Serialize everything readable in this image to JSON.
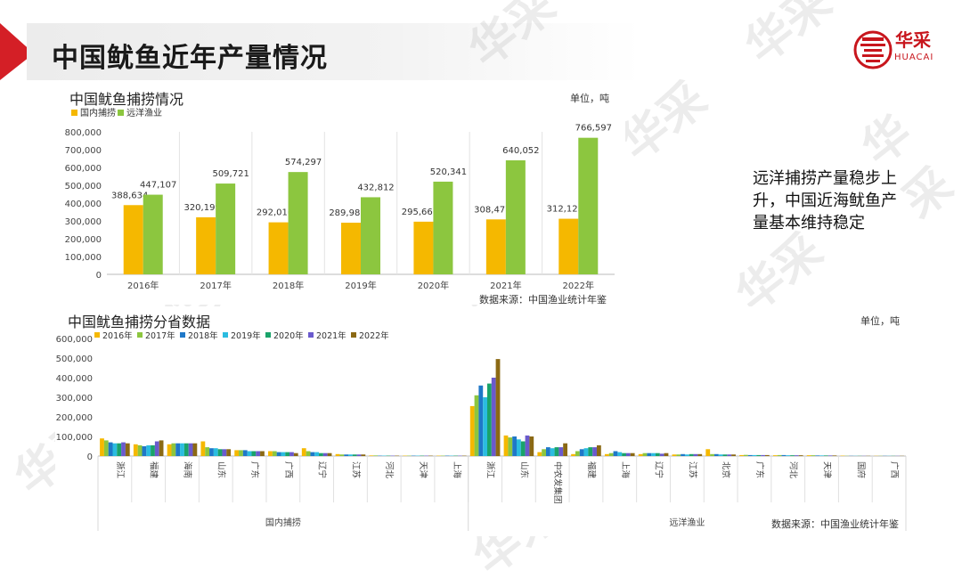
{
  "page": {
    "title": "中国鱿鱼近年产量情况",
    "brand": {
      "name": "华采",
      "sub": "HUACAI",
      "color": "#c8161d"
    },
    "watermark": "华采",
    "side_note": "远洋捕捞产量稳步上升，中国近海鱿鱼产量基本维持稳定"
  },
  "chart_data": [
    {
      "type": "bar",
      "title": "中国鱿鱼捕捞情况",
      "unit": "单位，吨",
      "source": "数据来源：中国渔业统计年鉴",
      "categories": [
        "2016年",
        "2017年",
        "2018年",
        "2019年",
        "2020年",
        "2021年",
        "2022年"
      ],
      "series": [
        {
          "name": "国内捕捞",
          "color": "#f5b800",
          "values": [
            388634,
            320199,
            292016,
            289987,
            295666,
            308477,
            312123
          ],
          "labels": [
            "388,634",
            "320,199",
            "292,016",
            "289,987",
            "295,666",
            "308,477",
            "312,123"
          ]
        },
        {
          "name": "远洋渔业",
          "color": "#8cc63f",
          "values": [
            447107,
            509721,
            574297,
            432812,
            520341,
            640052,
            766597
          ],
          "labels": [
            "447,107",
            "509,721",
            "574,297",
            "432,812",
            "520,341",
            "640,052",
            "766,597"
          ]
        }
      ],
      "ylim": [
        0,
        800000
      ],
      "yticks": [
        "0",
        "100,000",
        "200,000",
        "300,000",
        "400,000",
        "500,000",
        "600,000",
        "700,000",
        "800,000"
      ],
      "legend": "top-left",
      "grid": true
    },
    {
      "type": "bar",
      "title": "中国鱿鱼捕捞分省数据",
      "unit": "单位，吨",
      "source": "数据来源：中国渔业统计年鉴",
      "groups": [
        {
          "name": "国内捕捞",
          "categories": [
            "浙江",
            "福建",
            "海南",
            "山东",
            "广东",
            "广西",
            "辽宁",
            "江苏",
            "河北",
            "天津",
            "上海"
          ]
        },
        {
          "name": "远洋渔业",
          "categories": [
            "浙江",
            "山东",
            "中农发集团",
            "福建",
            "上海",
            "辽宁",
            "江苏",
            "北京",
            "广东",
            "河北",
            "天津",
            "国府",
            "广西"
          ]
        }
      ],
      "series": [
        {
          "name": "2016年",
          "color": "#f5b800",
          "values": [
            90000,
            60000,
            60000,
            75000,
            30000,
            25000,
            40000,
            10000,
            3000,
            2000,
            2000,
            255000,
            105000,
            20000,
            10000,
            10000,
            10000,
            8000,
            35000,
            5000,
            4000,
            4000,
            2000,
            1000
          ]
        },
        {
          "name": "2017年",
          "color": "#8cc63f",
          "values": [
            80000,
            55000,
            65000,
            45000,
            30000,
            25000,
            25000,
            8000,
            3000,
            2000,
            2000,
            310000,
            95000,
            35000,
            25000,
            15000,
            15000,
            8000,
            10000,
            6000,
            5000,
            4000,
            1000,
            1000
          ]
        },
        {
          "name": "2018年",
          "color": "#1f78c8",
          "values": [
            70000,
            50000,
            65000,
            40000,
            30000,
            20000,
            20000,
            8000,
            2000,
            2000,
            2000,
            360000,
            100000,
            45000,
            35000,
            25000,
            15000,
            10000,
            10000,
            5000,
            5000,
            3000,
            1000,
            1000
          ]
        },
        {
          "name": "2019年",
          "color": "#2bbce0",
          "values": [
            65000,
            55000,
            65000,
            40000,
            25000,
            20000,
            20000,
            8000,
            2000,
            2000,
            2000,
            300000,
            85000,
            40000,
            40000,
            20000,
            15000,
            8000,
            8000,
            5000,
            4000,
            3000,
            1000,
            1000
          ]
        },
        {
          "name": "2020年",
          "color": "#1aa36a",
          "values": [
            65000,
            55000,
            65000,
            35000,
            25000,
            20000,
            15000,
            8000,
            2000,
            2000,
            2000,
            370000,
            75000,
            45000,
            45000,
            15000,
            15000,
            10000,
            8000,
            5000,
            4000,
            3000,
            1000,
            1000
          ]
        },
        {
          "name": "2021年",
          "color": "#6a5acd",
          "values": [
            70000,
            75000,
            65000,
            35000,
            25000,
            20000,
            15000,
            8000,
            2000,
            2000,
            2000,
            400000,
            105000,
            45000,
            45000,
            15000,
            12000,
            10000,
            8000,
            5000,
            4000,
            3000,
            1000,
            1000
          ]
        },
        {
          "name": "2022年",
          "color": "#8b6914",
          "values": [
            65000,
            80000,
            65000,
            35000,
            25000,
            15000,
            15000,
            8000,
            2000,
            2000,
            2000,
            495000,
            100000,
            65000,
            55000,
            15000,
            15000,
            10000,
            8000,
            5000,
            4000,
            3000,
            1000,
            1000
          ]
        }
      ],
      "ylim": [
        0,
        600000
      ],
      "yticks": [
        "0",
        "100,000",
        "200,000",
        "300,000",
        "400,000",
        "500,000",
        "600,000"
      ],
      "legend": "top-left",
      "grid": false
    }
  ]
}
